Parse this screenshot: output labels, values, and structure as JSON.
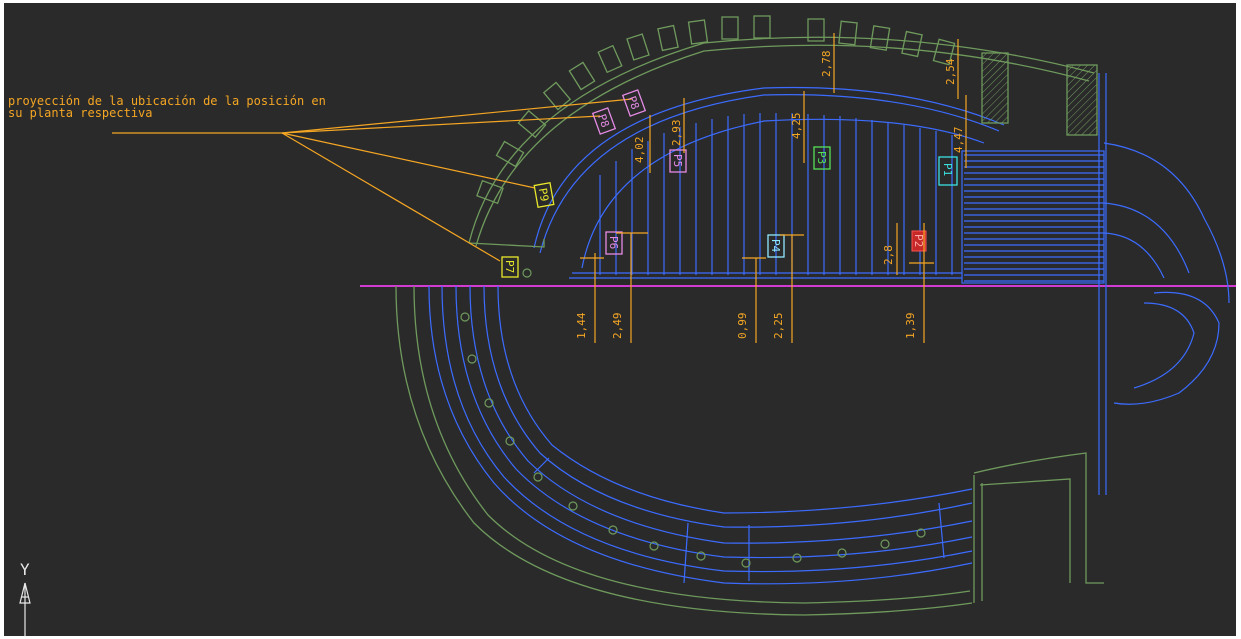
{
  "drawing": {
    "annotation": {
      "line1": "proyección de la ubicación de la posición en",
      "line2": "su planta respectiva"
    },
    "positions": [
      "P1",
      "P2",
      "P3",
      "P4",
      "P5",
      "P6",
      "P7",
      "P8",
      "P9",
      "P8"
    ],
    "upper_dims": [
      "4,02",
      "2,93",
      "2,78",
      "4,25",
      "2,54",
      "4,47",
      "2,8"
    ],
    "lower_dims": [
      "1,44",
      "2,49",
      "0,99",
      "2,25",
      "1,39"
    ],
    "ucs_axis": "Y",
    "colors": {
      "background": "#2a2a2b",
      "seating": "#3c6cff",
      "walls": "#6f9a5c",
      "dimensions": "#f5a623",
      "section_line": "#d13bd1",
      "axis": "#e8e8e8"
    }
  }
}
